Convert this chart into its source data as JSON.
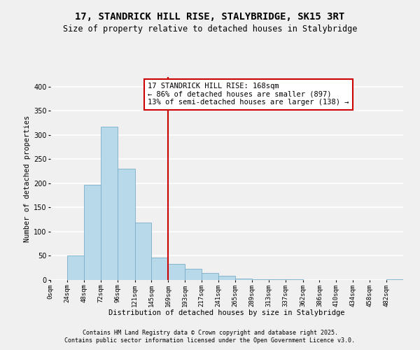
{
  "title": "17, STANDRICK HILL RISE, STALYBRIDGE, SK15 3RT",
  "subtitle": "Size of property relative to detached houses in Stalybridge",
  "xlabel": "Distribution of detached houses by size in Stalybridge",
  "ylabel": "Number of detached properties",
  "bin_edges": [
    0,
    24,
    48,
    72,
    96,
    121,
    145,
    169,
    193,
    217,
    241,
    265,
    289,
    313,
    337,
    362,
    386,
    410,
    434,
    458,
    482,
    506
  ],
  "bar_heights": [
    0,
    51,
    197,
    317,
    230,
    119,
    46,
    33,
    23,
    15,
    8,
    3,
    2,
    1,
    1,
    0,
    0,
    0,
    0,
    0,
    2
  ],
  "bar_color": "#b8d9ea",
  "bar_edge_color": "#7aaec8",
  "vline_x": 169,
  "vline_color": "#cc0000",
  "annotation_line1": "17 STANDRICK HILL RISE: 168sqm",
  "annotation_line2": "← 86% of detached houses are smaller (897)",
  "annotation_line3": "13% of semi-detached houses are larger (138) →",
  "annotation_box_color": "#cc0000",
  "ylim": [
    0,
    420
  ],
  "xlim": [
    0,
    506
  ],
  "yticks": [
    0,
    50,
    100,
    150,
    200,
    250,
    300,
    350,
    400
  ],
  "tick_labels": [
    "0sqm",
    "24sqm",
    "48sqm",
    "72sqm",
    "96sqm",
    "121sqm",
    "145sqm",
    "169sqm",
    "193sqm",
    "217sqm",
    "241sqm",
    "265sqm",
    "289sqm",
    "313sqm",
    "337sqm",
    "362sqm",
    "386sqm",
    "410sqm",
    "434sqm",
    "458sqm",
    "482sqm"
  ],
  "tick_positions": [
    0,
    24,
    48,
    72,
    96,
    121,
    145,
    169,
    193,
    217,
    241,
    265,
    289,
    313,
    337,
    362,
    386,
    410,
    434,
    458,
    482
  ],
  "footnote1": "Contains HM Land Registry data © Crown copyright and database right 2025.",
  "footnote2": "Contains public sector information licensed under the Open Government Licence v3.0.",
  "background_color": "#f0f0f0",
  "plot_bg_color": "#f0f0f0",
  "grid_color": "#ffffff",
  "title_fontsize": 10,
  "subtitle_fontsize": 8.5,
  "axis_label_fontsize": 7.5,
  "tick_fontsize": 6.5,
  "footnote_fontsize": 6.0,
  "ann_fontsize": 7.5
}
